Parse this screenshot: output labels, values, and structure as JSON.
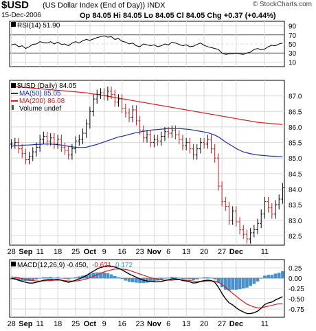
{
  "header": {
    "symbol": "$USD",
    "name": "(US Dollar Index (End of Day))",
    "exchange": "INDX",
    "date": "15-Dec-2006",
    "ohlc": "Op 84.05  Hi 84.05  Lo 84.05  Cl 84.05  Chg +0.37 (+0.44%)",
    "brand": "© StockCharts.com"
  },
  "colors": {
    "price_bar": "#000000",
    "ma50": "#1c2fa6",
    "ma200": "#d81e1e",
    "rsi_line": "#000000",
    "rsi_fill": "#9a7a78",
    "macd_line": "#000000",
    "signal_line": "#d81e1e",
    "histogram": "#4a90c8",
    "grid": "#d8d8d8"
  },
  "chart_data": [
    {
      "type": "line",
      "panel": "rsi",
      "legend": "RSI(14) 51.90",
      "yticks": [
        10,
        30,
        50,
        70,
        90
      ],
      "ylim": [
        0,
        100
      ],
      "reference_lines": [
        30,
        70
      ],
      "x": [
        0,
        1,
        2,
        3,
        4,
        5,
        6,
        7,
        8,
        9,
        10,
        11,
        12,
        13,
        14,
        15,
        16,
        17,
        18,
        19,
        20,
        21,
        22,
        23,
        24,
        25,
        26,
        27,
        28,
        29,
        30,
        31,
        32,
        33,
        34,
        35,
        36,
        37,
        38,
        39,
        40,
        41,
        42,
        43,
        44,
        45,
        46,
        47,
        48,
        49,
        50,
        51,
        52,
        53,
        54,
        55,
        56,
        57,
        58,
        59,
        60,
        61,
        62,
        63,
        64,
        65,
        66,
        67,
        68,
        69,
        70,
        71,
        72,
        73,
        74,
        75,
        76
      ],
      "values": [
        48,
        50,
        44,
        46,
        40,
        44,
        49,
        50,
        55,
        53,
        52,
        55,
        50,
        54,
        49,
        50,
        46,
        52,
        55,
        52,
        57,
        60,
        58,
        61,
        64,
        66,
        68,
        65,
        66,
        60,
        62,
        56,
        54,
        50,
        52,
        46,
        44,
        50,
        48,
        46,
        48,
        44,
        46,
        50,
        48,
        54,
        52,
        49,
        46,
        48,
        44,
        45,
        49,
        52,
        47,
        44,
        42,
        40,
        38,
        30,
        27,
        28,
        28,
        30,
        28,
        27,
        30,
        32,
        38,
        40,
        37,
        39,
        44,
        47,
        46,
        50,
        52
      ]
    },
    {
      "type": "bar",
      "panel": "price",
      "legend_title": "$USD (Daily) 84.05",
      "legend_ma50": "MA(50) 85.05",
      "legend_ma200": "MA(200) 86.08",
      "legend_volume": "Volume undef",
      "yticks": [
        82.5,
        83.0,
        83.5,
        84.0,
        84.5,
        85.0,
        85.5,
        86.0,
        86.5,
        87.0
      ],
      "ylim": [
        82.2,
        87.5
      ],
      "xticks": [
        "28",
        "Sep",
        "11",
        "18",
        "25",
        "Oct",
        "9",
        "16",
        "23",
        "Nov",
        "6",
        "13",
        "20",
        "27",
        "Dec",
        "11"
      ],
      "close": [
        85.45,
        85.5,
        85.3,
        85.15,
        84.95,
        85.05,
        85.2,
        85.35,
        85.6,
        85.7,
        85.55,
        85.65,
        85.45,
        85.6,
        85.35,
        85.25,
        85.1,
        85.3,
        85.55,
        85.6,
        85.8,
        86.1,
        86.5,
        86.9,
        87.05,
        87.1,
        87.0,
        87.15,
        87.05,
        86.8,
        86.9,
        86.6,
        86.45,
        86.3,
        86.55,
        86.2,
        85.9,
        85.65,
        85.75,
        85.5,
        85.6,
        85.55,
        85.7,
        85.85,
        85.8,
        85.9,
        85.75,
        85.6,
        85.4,
        85.5,
        85.3,
        85.1,
        85.3,
        85.5,
        85.45,
        85.6,
        85.3,
        85.0,
        84.1,
        83.6,
        83.45,
        83.0,
        83.3,
        82.95,
        82.7,
        82.55,
        82.4,
        82.6,
        82.7,
        82.9,
        83.2,
        83.6,
        83.4,
        83.2,
        83.5,
        83.68,
        84.05
      ],
      "high_offset": 0.15,
      "low_offset": 0.15,
      "ma50": [
        85.38,
        85.4,
        85.4,
        85.41,
        85.42,
        85.42,
        85.43,
        85.44,
        85.44,
        85.45,
        85.45,
        85.45,
        85.44,
        85.43,
        85.42,
        85.4,
        85.38,
        85.36,
        85.35,
        85.34,
        85.34,
        85.35,
        85.38,
        85.41,
        85.44,
        85.48,
        85.52,
        85.56,
        85.6,
        85.64,
        85.68,
        85.7,
        85.73,
        85.76,
        85.79,
        85.82,
        85.84,
        85.86,
        85.88,
        85.9,
        85.91,
        85.92,
        85.93,
        85.94,
        85.95,
        85.95,
        85.95,
        85.95,
        85.94,
        85.93,
        85.92,
        85.9,
        85.88,
        85.86,
        85.84,
        85.82,
        85.78,
        85.74,
        85.68,
        85.6,
        85.52,
        85.45,
        85.38,
        85.31,
        85.25,
        85.2,
        85.17,
        85.14,
        85.12,
        85.1,
        85.09,
        85.08,
        85.07,
        85.06,
        85.06,
        85.05,
        85.05
      ],
      "ma200": [
        87.3,
        87.3,
        87.29,
        87.28,
        87.27,
        87.26,
        87.25,
        87.24,
        87.23,
        87.22,
        87.21,
        87.2,
        87.19,
        87.18,
        87.17,
        87.16,
        87.15,
        87.14,
        87.13,
        87.12,
        87.11,
        87.1,
        87.08,
        87.06,
        87.05,
        87.03,
        87.01,
        86.99,
        86.97,
        86.95,
        86.93,
        86.91,
        86.89,
        86.87,
        86.85,
        86.83,
        86.81,
        86.79,
        86.77,
        86.75,
        86.73,
        86.71,
        86.69,
        86.67,
        86.65,
        86.63,
        86.61,
        86.59,
        86.57,
        86.55,
        86.53,
        86.51,
        86.49,
        86.47,
        86.45,
        86.43,
        86.41,
        86.39,
        86.37,
        86.35,
        86.33,
        86.31,
        86.29,
        86.27,
        86.25,
        86.23,
        86.21,
        86.19,
        86.17,
        86.15,
        86.14,
        86.13,
        86.12,
        86.11,
        86.1,
        86.09,
        86.08
      ]
    },
    {
      "type": "line",
      "panel": "macd",
      "legend_macd": "MACD(12,26,9) -0.450,",
      "legend_signal": "-0.621,",
      "legend_hist": "0.172",
      "yticks": [
        0.25,
        0.0,
        -0.25,
        -0.5,
        -0.75
      ],
      "ylim": [
        -0.95,
        0.45
      ],
      "xticks": [
        "28",
        "Sep",
        "11",
        "18",
        "25",
        "Oct",
        "9",
        "16",
        "23",
        "Nov",
        "6",
        "13",
        "20",
        "27",
        "Dec",
        "11"
      ],
      "macd": [
        0.0,
        -0.02,
        -0.05,
        -0.08,
        -0.1,
        -0.12,
        -0.12,
        -0.1,
        -0.08,
        -0.05,
        -0.04,
        -0.03,
        -0.04,
        -0.03,
        -0.05,
        -0.08,
        -0.1,
        -0.08,
        -0.05,
        -0.02,
        0.02,
        0.06,
        0.12,
        0.17,
        0.22,
        0.26,
        0.28,
        0.3,
        0.29,
        0.27,
        0.24,
        0.2,
        0.15,
        0.1,
        0.06,
        0.02,
        -0.02,
        -0.05,
        -0.07,
        -0.08,
        -0.09,
        -0.09,
        -0.08,
        -0.06,
        -0.04,
        -0.02,
        -0.02,
        -0.03,
        -0.06,
        -0.07,
        -0.09,
        -0.12,
        -0.11,
        -0.08,
        -0.06,
        -0.05,
        -0.06,
        -0.1,
        -0.22,
        -0.37,
        -0.5,
        -0.6,
        -0.65,
        -0.72,
        -0.78,
        -0.82,
        -0.86,
        -0.86,
        -0.84,
        -0.8,
        -0.73,
        -0.64,
        -0.6,
        -0.58,
        -0.53,
        -0.49,
        -0.45
      ],
      "signal": [
        0.03,
        0.02,
        0.01,
        -0.01,
        -0.03,
        -0.05,
        -0.06,
        -0.07,
        -0.07,
        -0.07,
        -0.06,
        -0.06,
        -0.05,
        -0.05,
        -0.05,
        -0.06,
        -0.07,
        -0.07,
        -0.07,
        -0.06,
        -0.04,
        -0.02,
        0.01,
        0.04,
        0.08,
        0.12,
        0.15,
        0.18,
        0.2,
        0.22,
        0.22,
        0.22,
        0.21,
        0.19,
        0.16,
        0.13,
        0.1,
        0.07,
        0.04,
        0.01,
        -0.01,
        -0.03,
        -0.04,
        -0.05,
        -0.05,
        -0.05,
        -0.04,
        -0.04,
        -0.04,
        -0.05,
        -0.06,
        -0.07,
        -0.08,
        -0.08,
        -0.08,
        -0.07,
        -0.07,
        -0.07,
        -0.1,
        -0.15,
        -0.22,
        -0.3,
        -0.37,
        -0.44,
        -0.51,
        -0.57,
        -0.63,
        -0.67,
        -0.7,
        -0.72,
        -0.72,
        -0.7,
        -0.68,
        -0.66,
        -0.64,
        -0.62,
        -0.62
      ]
    }
  ]
}
